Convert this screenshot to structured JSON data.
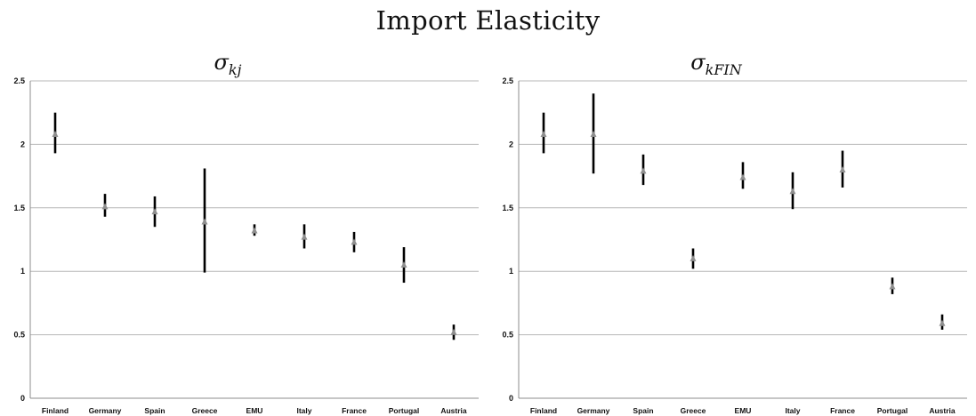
{
  "title": "Import Elasticity",
  "chart_data": [
    {
      "type": "errorbar",
      "title": {
        "symbol": "σ",
        "subscript": "kj"
      },
      "categories": [
        "Finland",
        "Germany",
        "Spain",
        "Greece",
        "EMU",
        "Italy",
        "France",
        "Portugal",
        "Austria"
      ],
      "values": [
        2.08,
        1.51,
        1.47,
        1.39,
        1.32,
        1.27,
        1.23,
        1.05,
        0.52
      ],
      "lower": [
        1.93,
        1.43,
        1.35,
        0.99,
        1.28,
        1.18,
        1.15,
        0.91,
        0.46
      ],
      "upper": [
        2.25,
        1.61,
        1.59,
        1.81,
        1.37,
        1.37,
        1.31,
        1.19,
        0.58
      ],
      "ylim": [
        0,
        2.5
      ],
      "yticks": [
        "0",
        "0.5",
        "1",
        "1.5",
        "2",
        "2.5"
      ],
      "ytick_values": [
        0,
        0.5,
        1,
        1.5,
        2,
        2.5
      ],
      "grid": true,
      "marker_color": "#8f8f8f",
      "bar_color": "#000000"
    },
    {
      "type": "errorbar",
      "title": {
        "symbol": "σ",
        "subscript": "kFIN"
      },
      "categories": [
        "Finland",
        "Germany",
        "Spain",
        "Greece",
        "EMU",
        "Italy",
        "France",
        "Portugal",
        "Austria"
      ],
      "values": [
        2.08,
        2.08,
        1.79,
        1.1,
        1.74,
        1.63,
        1.8,
        0.88,
        0.59
      ],
      "lower": [
        1.93,
        1.77,
        1.68,
        1.02,
        1.65,
        1.49,
        1.66,
        0.82,
        0.54
      ],
      "upper": [
        2.25,
        2.4,
        1.92,
        1.18,
        1.86,
        1.78,
        1.95,
        0.95,
        0.66
      ],
      "ylim": [
        0,
        2.5
      ],
      "yticks": [
        "0",
        "0.5",
        "1",
        "1.5",
        "2",
        "2.5"
      ],
      "ytick_values": [
        0,
        0.5,
        1,
        1.5,
        2,
        2.5
      ],
      "grid": true,
      "marker_color": "#8f8f8f",
      "bar_color": "#000000"
    }
  ]
}
